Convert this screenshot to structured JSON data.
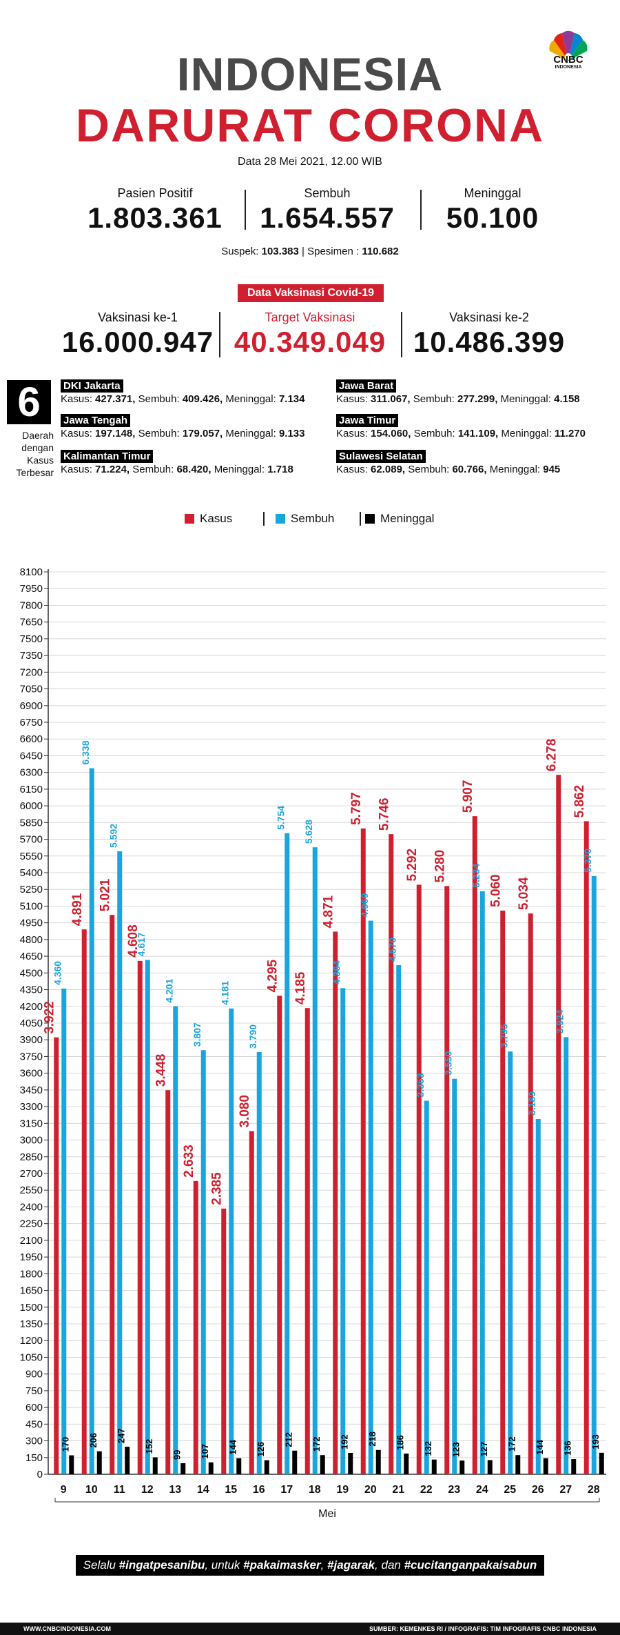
{
  "logo": {
    "text": "CNBC",
    "sub": "INDONESIA"
  },
  "title": {
    "line1": "INDONESIA",
    "line2": "DARURAT CORONA"
  },
  "date": "Data 28 Mei 2021, 12.00 WIB",
  "stats": [
    {
      "label": "Pasien Positif",
      "value": "1.803.361"
    },
    {
      "label": "Sembuh",
      "value": "1.654.557"
    },
    {
      "label": "Meninggal",
      "value": "50.100"
    }
  ],
  "suspek": {
    "label": "Suspek:",
    "value": "103.383",
    "sep": "|",
    "spes_label": "Spesimen :",
    "spes_value": "110.682"
  },
  "vaksin": {
    "banner": "Data Vaksinasi Covid-19",
    "items": [
      {
        "label": "Vaksinasi ke-1",
        "value": "16.000.947"
      },
      {
        "label": "Target Vaksinasi",
        "value": "40.349.049"
      },
      {
        "label": "Vaksinasi ke-2",
        "value": "10.486.399"
      }
    ]
  },
  "daerah": {
    "count": "6",
    "caption": [
      "Daerah",
      "dengan",
      "Kasus",
      "Terbesar"
    ],
    "regions": [
      {
        "name": "DKI Jakarta",
        "k_label": "Kasus:",
        "kasus": "427.371,",
        "s_label": "Sembuh:",
        "sembuh": "409.426,",
        "m_label": "Meninggal:",
        "meninggal": "7.134"
      },
      {
        "name": "Jawa Barat",
        "k_label": "Kasus:",
        "kasus": "311.067,",
        "s_label": "Sembuh:",
        "sembuh": "277.299,",
        "m_label": "Meninggal:",
        "meninggal": "4.158"
      },
      {
        "name": "Jawa Tengah",
        "k_label": "Kasus:",
        "kasus": "197.148,",
        "s_label": "Sembuh:",
        "sembuh": "179.057,",
        "m_label": "Meninggal:",
        "meninggal": "9.133"
      },
      {
        "name": "Jawa Timur",
        "k_label": "Kasus:",
        "kasus": "154.060,",
        "s_label": "Sembuh:",
        "sembuh": "141.109,",
        "m_label": "Meninggal:",
        "meninggal": "11.270"
      },
      {
        "name": "Kalimantan Timur",
        "k_label": "Kasus:",
        "kasus": "71.224,",
        "s_label": "Sembuh:",
        "sembuh": "68.420,",
        "m_label": "Meninggal:",
        "meninggal": "1.718"
      },
      {
        "name": "Sulawesi Selatan",
        "k_label": "Kasus:",
        "kasus": "62.089,",
        "s_label": "Sembuh:",
        "sembuh": "60.766,",
        "m_label": "Meninggal:",
        "meninggal": "945"
      }
    ]
  },
  "legend": [
    {
      "name": "Kasus",
      "color": "#d0202f"
    },
    {
      "name": "Sembuh",
      "color": "#19a6df"
    },
    {
      "name": "Meninggal",
      "color": "#000000"
    }
  ],
  "chart_data": {
    "type": "bar",
    "xlabel": "Mei",
    "ylim": [
      0,
      8100
    ],
    "ytick_step": 150,
    "categories": [
      "9",
      "10",
      "11",
      "12",
      "13",
      "14",
      "15",
      "16",
      "17",
      "18",
      "19",
      "20",
      "21",
      "22",
      "23",
      "24",
      "25",
      "26",
      "27",
      "28"
    ],
    "series": [
      {
        "name": "Kasus",
        "color": "#d0202f",
        "values": [
          3922,
          4891,
          5021,
          4608,
          3448,
          2633,
          2385,
          3080,
          4295,
          4185,
          4871,
          5797,
          5746,
          5292,
          5280,
          5907,
          5060,
          5034,
          6278,
          5862
        ],
        "labels": [
          "3.922",
          "4.891",
          "5.021",
          "4.608",
          "3.448",
          "2.633",
          "2.385",
          "3.080",
          "4.295",
          "4.185",
          "4.871",
          "5.797",
          "5.746",
          "5.292",
          "5.280",
          "5.907",
          "5.060",
          "5.034",
          "6.278",
          "5.862"
        ]
      },
      {
        "name": "Sembuh",
        "color": "#19a6df",
        "values": [
          4360,
          6338,
          5592,
          4617,
          4201,
          3807,
          4181,
          3790,
          5754,
          5628,
          4364,
          4969,
          4570,
          3353,
          3550,
          5234,
          3795,
          3189,
          3924,
          5370
        ],
        "labels": [
          "4.360",
          "6.338",
          "5.592",
          "4.617",
          "4.201",
          "3.807",
          "4.181",
          "3.790",
          "5.754",
          "5.628",
          "4.364",
          "4.969",
          "4.570",
          "3.353",
          "3.550",
          "5.234",
          "3.795",
          "3.189",
          "3.924",
          "5.370"
        ]
      },
      {
        "name": "Meninggal",
        "color": "#000000",
        "values": [
          170,
          206,
          247,
          152,
          99,
          107,
          144,
          126,
          212,
          172,
          192,
          218,
          186,
          132,
          123,
          127,
          172,
          144,
          136,
          193
        ],
        "labels": [
          "170",
          "206",
          "247",
          "152",
          "99",
          "107",
          "144",
          "126",
          "212",
          "172",
          "192",
          "218",
          "186",
          "132",
          "123",
          "127",
          "172",
          "144",
          "136",
          "193"
        ]
      }
    ]
  },
  "slogan": {
    "t1": "Selalu ",
    "h1": "#ingatpesanibu",
    "t2": ", untuk ",
    "h2": "#pakaimasker",
    "t3": ", ",
    "h3": "#jagarak",
    "t4": ", dan ",
    "h4": "#cucitanganpakaisabun"
  },
  "footer": {
    "left": "WWW.CNBCINDONESIA.COM",
    "right": "SUMBER: KEMENKES RI / INFOGRAFIS: TIM INFOGRAFIS CNBC INDONESIA"
  }
}
